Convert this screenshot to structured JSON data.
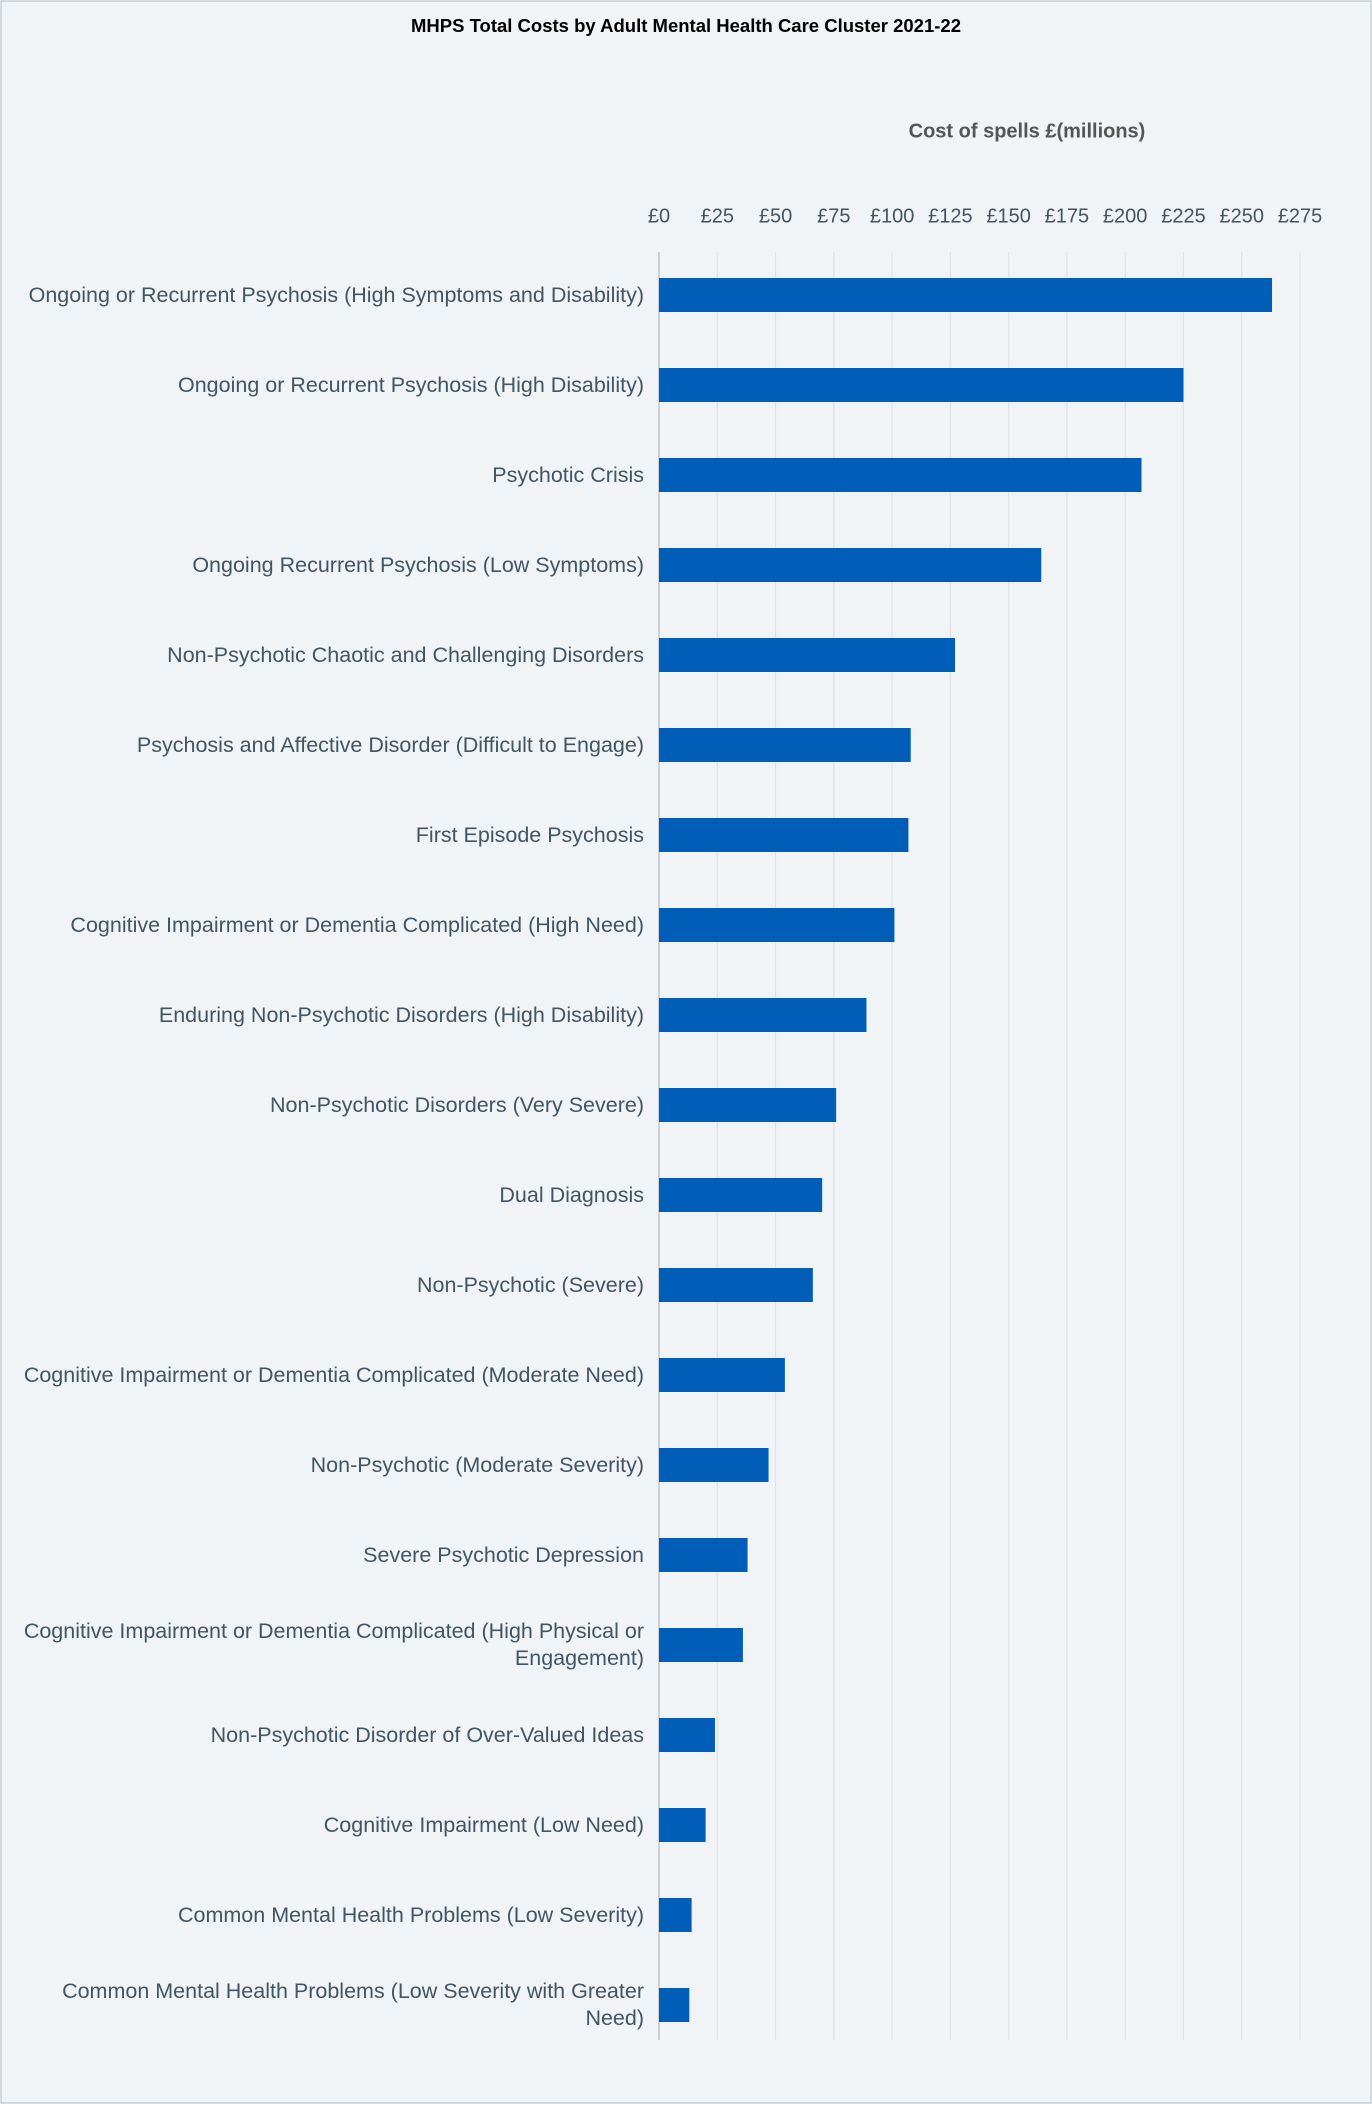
{
  "chart_data": {
    "type": "bar",
    "orientation": "horizontal",
    "title": "MHPS Total Costs by Adult Mental Health Care Cluster 2021-22",
    "x_label": "Cost of spells £(millions)",
    "categories": [
      "Ongoing or Recurrent Psychosis (High Symptoms and Disability)",
      "Ongoing or Recurrent Psychosis (High Disability)",
      "Psychotic Crisis",
      "Ongoing Recurrent Psychosis (Low Symptoms)",
      "Non-Psychotic Chaotic and Challenging Disorders",
      "Psychosis and Affective Disorder (Difficult to Engage)",
      "First Episode Psychosis",
      "Cognitive Impairment or Dementia Complicated (High Need)",
      "Enduring Non-Psychotic Disorders (High Disability)",
      "Non-Psychotic Disorders (Very Severe)",
      "Dual Diagnosis",
      "Non-Psychotic (Severe)",
      "Cognitive Impairment or Dementia Complicated (Moderate Need)",
      "Non-Psychotic (Moderate Severity)",
      "Severe Psychotic Depression",
      "Cognitive Impairment or Dementia Complicated (High Physical or Engagement)",
      "Non-Psychotic Disorder of Over-Valued Ideas",
      "Cognitive Impairment (Low Need)",
      "Common Mental Health Problems (Low Severity)",
      "Common Mental Health Problems (Low Severity with Greater Need)"
    ],
    "values": [
      263,
      225,
      207,
      164,
      127,
      108,
      107,
      101,
      89,
      76,
      70,
      66,
      54,
      47,
      38,
      36,
      24,
      20,
      14,
      13
    ],
    "color": "#005eb8",
    "xlim": [
      0,
      275
    ],
    "xticks": [
      {
        "value": 0,
        "label": "£0"
      },
      {
        "value": 25,
        "label": "£25"
      },
      {
        "value": 50,
        "label": "£50"
      },
      {
        "value": 75,
        "label": "£75"
      },
      {
        "value": 100,
        "label": "£100"
      },
      {
        "value": 125,
        "label": "£125"
      },
      {
        "value": 150,
        "label": "£150"
      },
      {
        "value": 175,
        "label": "£175"
      },
      {
        "value": 200,
        "label": "£200"
      },
      {
        "value": 225,
        "label": "£225"
      },
      {
        "value": 250,
        "label": "£250"
      },
      {
        "value": 275,
        "label": "£275"
      }
    ],
    "grid": true
  }
}
